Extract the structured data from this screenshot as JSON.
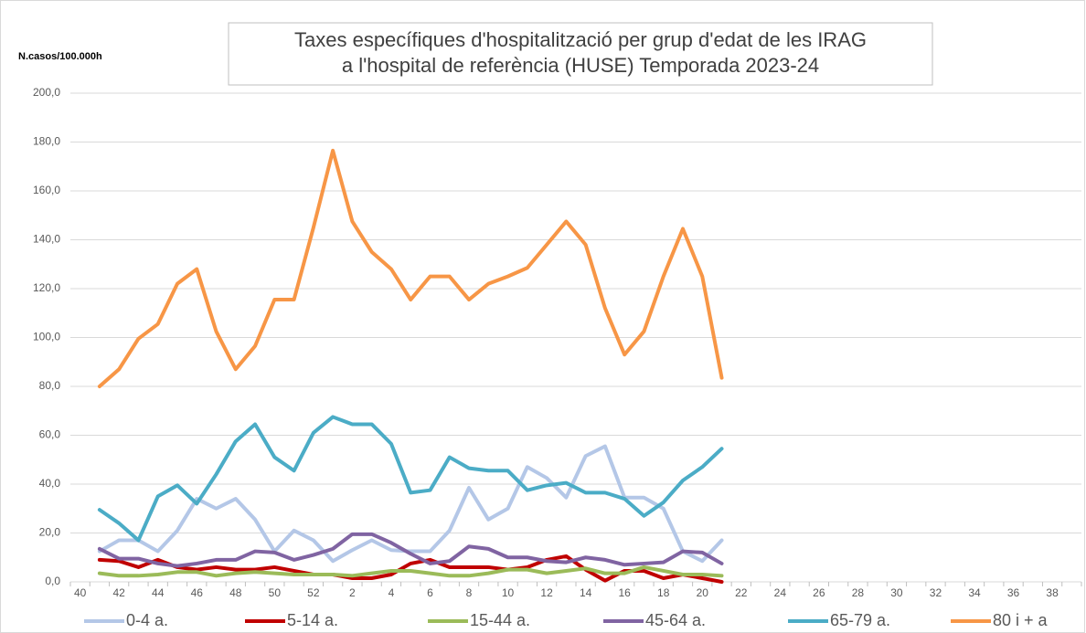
{
  "chart_data": {
    "type": "line",
    "title": [
      "Taxes específiques d'hospitalització per grup d'edat de les IRAG",
      "a l'hospital de referència (HUSE) Temporada 2023-24"
    ],
    "y_label": "N.casos/100.000h",
    "categories": [
      "40",
      null,
      "42",
      null,
      "44",
      null,
      "46",
      null,
      "48",
      null,
      "50",
      null,
      "52",
      null,
      "2",
      null,
      "4",
      null,
      "6",
      null,
      "8",
      null,
      "10",
      null,
      "12",
      null,
      "14",
      null,
      "16",
      null,
      "18",
      null,
      "20",
      null,
      "22",
      null,
      "24",
      null,
      "26",
      null,
      "28",
      null,
      "30",
      null,
      "32",
      null,
      "34",
      null,
      "36",
      null,
      "38",
      null
    ],
    "ylim": [
      0,
      200
    ],
    "yticks": [
      {
        "value": 0,
        "label": "0,0"
      },
      {
        "value": 20,
        "label": "20,0"
      },
      {
        "value": 40,
        "label": "40,0"
      },
      {
        "value": 60,
        "label": "60,0"
      },
      {
        "value": 80,
        "label": "80,0"
      },
      {
        "value": 100,
        "label": "100,0"
      },
      {
        "value": 120,
        "label": "120,0"
      },
      {
        "value": 140,
        "label": "140,0"
      },
      {
        "value": 160,
        "label": "160,0"
      },
      {
        "value": 180,
        "label": "180,0"
      },
      {
        "value": 200,
        "label": "200,0"
      }
    ],
    "grid": true,
    "legend": "bottom",
    "series": [
      {
        "name": "0-4 a.",
        "color": "#b4c7e7",
        "values": [
          null,
          12.5,
          17,
          17,
          12.5,
          21,
          34,
          30,
          34,
          25.5,
          12.5,
          21,
          17,
          8.5,
          13,
          17,
          13,
          12.5,
          12.5,
          21,
          38.5,
          25.5,
          30,
          47,
          42.5,
          34.5,
          51.5,
          55.5,
          34.5,
          34.5,
          30,
          12.5,
          8.5,
          17,
          null,
          null,
          null,
          null,
          null,
          null,
          null,
          null,
          null,
          null,
          null,
          null,
          null,
          null,
          null,
          null,
          null,
          null
        ]
      },
      {
        "name": "5-14 a.",
        "color": "#c00000",
        "values": [
          null,
          9,
          8.5,
          6,
          9,
          6,
          5,
          6,
          5,
          5,
          6,
          4.5,
          3,
          3,
          1.5,
          1.5,
          3,
          7.5,
          9,
          6,
          6,
          6,
          5,
          6,
          9,
          10.5,
          5,
          0.5,
          4.5,
          4.5,
          1.5,
          3,
          1.5,
          0,
          null,
          null,
          null,
          null,
          null,
          null,
          null,
          null,
          null,
          null,
          null,
          null,
          null,
          null,
          null,
          null,
          null,
          null
        ]
      },
      {
        "name": "15-44 a.",
        "color": "#9bbb59",
        "values": [
          null,
          3.5,
          2.5,
          2.5,
          3,
          4,
          4,
          2.5,
          3.5,
          4,
          3.5,
          3,
          3,
          3,
          2.5,
          3.5,
          4.5,
          4.5,
          3.5,
          2.5,
          2.5,
          3.5,
          5,
          5,
          3.5,
          4.5,
          5.5,
          3.5,
          3.5,
          6,
          4.5,
          3,
          3,
          2.5,
          null,
          null,
          null,
          null,
          null,
          null,
          null,
          null,
          null,
          null,
          null,
          null,
          null,
          null,
          null,
          null,
          null,
          null
        ]
      },
      {
        "name": "45-64 a.",
        "color": "#8064a2",
        "values": [
          null,
          13.5,
          9.5,
          9.5,
          7.5,
          6.5,
          7.5,
          9,
          9,
          12.5,
          12,
          9,
          11,
          13.5,
          19.5,
          19.5,
          16,
          11.5,
          7.5,
          8.5,
          14.5,
          13.5,
          10,
          10,
          8.5,
          8,
          10,
          9,
          7,
          7.5,
          8,
          12.5,
          12,
          7.5,
          null,
          null,
          null,
          null,
          null,
          null,
          null,
          null,
          null,
          null,
          null,
          null,
          null,
          null,
          null,
          null,
          null,
          null
        ]
      },
      {
        "name": "65-79 a.",
        "color": "#4bacc6",
        "values": [
          null,
          29.5,
          24,
          17,
          35,
          39.5,
          32,
          44,
          57.5,
          64.5,
          51,
          45.5,
          61,
          67.5,
          64.5,
          64.5,
          56.5,
          36.5,
          37.5,
          51,
          46.5,
          45.5,
          45.5,
          37.5,
          39.5,
          40.5,
          36.5,
          36.5,
          34,
          27,
          32.5,
          41.5,
          47,
          54.5,
          null,
          null,
          null,
          null,
          null,
          null,
          null,
          null,
          null,
          null,
          null,
          null,
          null,
          null,
          null,
          null,
          null,
          null
        ]
      },
      {
        "name": "80 i + a",
        "color": "#f79646",
        "values": [
          null,
          80,
          87,
          99.5,
          105.5,
          122,
          128,
          102.5,
          87,
          96.5,
          115.5,
          115.5,
          145,
          176.5,
          147.5,
          135,
          128,
          115.5,
          125,
          125,
          115.5,
          122,
          125,
          128.5,
          138,
          147.5,
          138,
          112,
          93,
          102.5,
          125,
          144.5,
          125,
          83.5,
          null,
          null,
          null,
          null,
          null,
          null,
          null,
          null,
          null,
          null,
          null,
          null,
          null,
          null,
          null,
          null,
          null,
          null
        ]
      }
    ]
  }
}
